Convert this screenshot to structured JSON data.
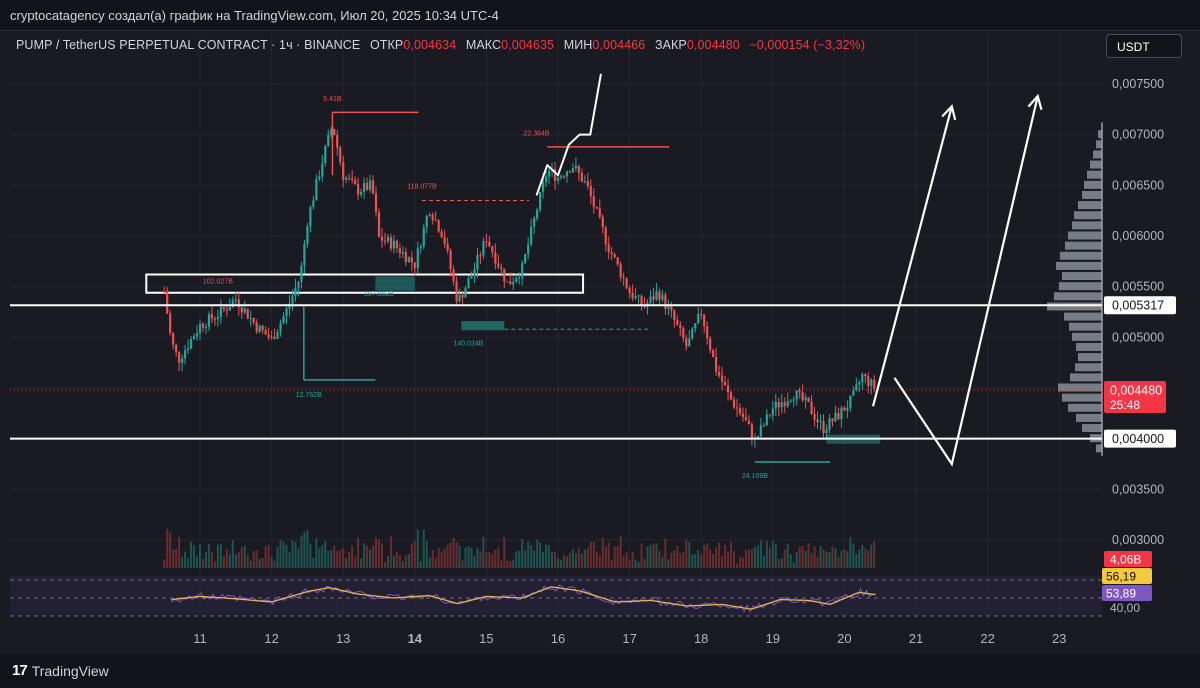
{
  "header": {
    "attribution": "cryptocatagency создал(а) график на TradingView.com, Июл 20, 2025 10:34 UTC-4"
  },
  "legend": {
    "symbol": "PUMP / TetherUS PERPETUAL CONTRACT · 1ч · BINANCE",
    "open_label": "ОТКР",
    "open": "0,004634",
    "high_label": "МАКС",
    "high": "0,004635",
    "low_label": "МИН",
    "low": "0,004466",
    "close_label": "ЗАКР",
    "close": "0,004480",
    "change": "−0,000154 (−3,32%)"
  },
  "currency_button": "USDT",
  "footer": {
    "brand": "TradingView"
  },
  "colors": {
    "background": "#1a1b22",
    "up": "#26a69a",
    "down": "#ef5350",
    "rsi_line": "#7e57c2",
    "rsi_ma": "#e8b64a",
    "level_line": "#ffffff"
  },
  "chart_data": {
    "type": "candlestick",
    "timeframe": "1h",
    "y_axis": {
      "ticks": [
        "0,007500",
        "0,007000",
        "0,006500",
        "0,006000",
        "0,005500",
        "0,005000",
        "0,004500",
        "0,004000",
        "0,003500",
        "0,003000"
      ],
      "range": [
        0.00278,
        0.0078
      ]
    },
    "x_axis": {
      "ticks": [
        "11",
        "12",
        "13",
        "14",
        "15",
        "16",
        "17",
        "18",
        "19",
        "20",
        "21",
        "22",
        "23"
      ],
      "bold_tick": "14"
    },
    "price_path": [
      {
        "day": 10.5,
        "price": 0.00545
      },
      {
        "day": 10.6,
        "price": 0.00495
      },
      {
        "day": 10.7,
        "price": 0.00478
      },
      {
        "day": 11.0,
        "price": 0.00512
      },
      {
        "day": 11.3,
        "price": 0.00525
      },
      {
        "day": 11.5,
        "price": 0.00538
      },
      {
        "day": 11.8,
        "price": 0.0051
      },
      {
        "day": 12.0,
        "price": 0.00498
      },
      {
        "day": 12.2,
        "price": 0.00525
      },
      {
        "day": 12.4,
        "price": 0.0056
      },
      {
        "day": 12.5,
        "price": 0.00615
      },
      {
        "day": 12.7,
        "price": 0.00672
      },
      {
        "day": 12.85,
        "price": 0.0071
      },
      {
        "day": 13.0,
        "price": 0.0066
      },
      {
        "day": 13.2,
        "price": 0.00645
      },
      {
        "day": 13.4,
        "price": 0.0065
      },
      {
        "day": 13.5,
        "price": 0.00598
      },
      {
        "day": 13.7,
        "price": 0.00592
      },
      {
        "day": 14.0,
        "price": 0.00572
      },
      {
        "day": 14.2,
        "price": 0.00628
      },
      {
        "day": 14.4,
        "price": 0.006
      },
      {
        "day": 14.6,
        "price": 0.00535
      },
      {
        "day": 14.8,
        "price": 0.00562
      },
      {
        "day": 15.0,
        "price": 0.00598
      },
      {
        "day": 15.3,
        "price": 0.00552
      },
      {
        "day": 15.5,
        "price": 0.00568
      },
      {
        "day": 15.7,
        "price": 0.00625
      },
      {
        "day": 15.85,
        "price": 0.00665
      },
      {
        "day": 16.0,
        "price": 0.00658
      },
      {
        "day": 16.2,
        "price": 0.0067
      },
      {
        "day": 16.4,
        "price": 0.0065
      },
      {
        "day": 16.7,
        "price": 0.0059
      },
      {
        "day": 17.0,
        "price": 0.00545
      },
      {
        "day": 17.2,
        "price": 0.0053
      },
      {
        "day": 17.4,
        "price": 0.00545
      },
      {
        "day": 17.6,
        "price": 0.0052
      },
      {
        "day": 17.8,
        "price": 0.0049
      },
      {
        "day": 18.0,
        "price": 0.00525
      },
      {
        "day": 18.2,
        "price": 0.0047
      },
      {
        "day": 18.4,
        "price": 0.0044
      },
      {
        "day": 18.6,
        "price": 0.0042
      },
      {
        "day": 18.75,
        "price": 0.00398
      },
      {
        "day": 19.0,
        "price": 0.0043
      },
      {
        "day": 19.3,
        "price": 0.00445
      },
      {
        "day": 19.5,
        "price": 0.00432
      },
      {
        "day": 19.7,
        "price": 0.0041
      },
      {
        "day": 19.9,
        "price": 0.00422
      },
      {
        "day": 20.1,
        "price": 0.00438
      },
      {
        "day": 20.25,
        "price": 0.00462
      },
      {
        "day": 20.45,
        "price": 0.00448
      }
    ],
    "levels": [
      {
        "price": 0.005317,
        "label": "0,005317"
      },
      {
        "price": 0.004,
        "label": "0,004000"
      }
    ],
    "current_price": {
      "label": "0,004480",
      "countdown": "25:48",
      "price": 0.00448
    },
    "zone_rect": {
      "day_from": 10.25,
      "day_to": 16.35,
      "price_top": 0.00562,
      "price_bottom": 0.00544
    },
    "volume_annotations": [
      {
        "text": "5.41B",
        "day": 12.85,
        "price": 0.00733
      },
      {
        "text": "102.027B",
        "day": 11.25,
        "price": 0.00553
      },
      {
        "text": "12.762B",
        "day": 12.52,
        "price": 0.00441
      },
      {
        "text": "118.077B",
        "day": 14.1,
        "price": 0.00647
      },
      {
        "text": "22.384B",
        "day": 15.7,
        "price": 0.00699
      },
      {
        "text": "140.024B",
        "day": 14.75,
        "price": 0.00492
      },
      {
        "text": "24.109B",
        "day": 18.75,
        "price": 0.00361
      },
      {
        "text": "107.662B",
        "day": 13.5,
        "price": 0.00541
      }
    ],
    "volume_label": "4,06B",
    "rsi": {
      "value_ma": "56,19",
      "value": "53,89",
      "level_label": "40,00",
      "path": [
        {
          "day": 10.6,
          "rsi": 48
        },
        {
          "day": 11.0,
          "rsi": 52
        },
        {
          "day": 11.5,
          "rsi": 49
        },
        {
          "day": 12.0,
          "rsi": 45
        },
        {
          "day": 12.5,
          "rsi": 58
        },
        {
          "day": 12.8,
          "rsi": 63
        },
        {
          "day": 13.2,
          "rsi": 55
        },
        {
          "day": 13.7,
          "rsi": 50
        },
        {
          "day": 14.2,
          "rsi": 53
        },
        {
          "day": 14.6,
          "rsi": 43
        },
        {
          "day": 15.0,
          "rsi": 52
        },
        {
          "day": 15.5,
          "rsi": 50
        },
        {
          "day": 15.9,
          "rsi": 64
        },
        {
          "day": 16.3,
          "rsi": 59
        },
        {
          "day": 16.8,
          "rsi": 45
        },
        {
          "day": 17.3,
          "rsi": 47
        },
        {
          "day": 17.8,
          "rsi": 40
        },
        {
          "day": 18.3,
          "rsi": 42
        },
        {
          "day": 18.7,
          "rsi": 36
        },
        {
          "day": 19.1,
          "rsi": 48
        },
        {
          "day": 19.5,
          "rsi": 47
        },
        {
          "day": 19.8,
          "rsi": 42
        },
        {
          "day": 20.2,
          "rsi": 57
        },
        {
          "day": 20.45,
          "rsi": 54
        }
      ]
    },
    "volume_profile": [
      {
        "price": 0.007,
        "size": 4
      },
      {
        "price": 0.0069,
        "size": 6
      },
      {
        "price": 0.0068,
        "size": 9
      },
      {
        "price": 0.0067,
        "size": 12
      },
      {
        "price": 0.0066,
        "size": 15
      },
      {
        "price": 0.0065,
        "size": 18
      },
      {
        "price": 0.0064,
        "size": 20
      },
      {
        "price": 0.0063,
        "size": 24
      },
      {
        "price": 0.0062,
        "size": 28
      },
      {
        "price": 0.0061,
        "size": 30
      },
      {
        "price": 0.006,
        "size": 34
      },
      {
        "price": 0.0059,
        "size": 37
      },
      {
        "price": 0.0058,
        "size": 42
      },
      {
        "price": 0.0057,
        "size": 46
      },
      {
        "price": 0.0056,
        "size": 40
      },
      {
        "price": 0.0055,
        "size": 43
      },
      {
        "price": 0.0054,
        "size": 48
      },
      {
        "price": 0.0053,
        "size": 55
      },
      {
        "price": 0.0052,
        "size": 38
      },
      {
        "price": 0.0051,
        "size": 33
      },
      {
        "price": 0.005,
        "size": 30
      },
      {
        "price": 0.0049,
        "size": 26
      },
      {
        "price": 0.0048,
        "size": 24
      },
      {
        "price": 0.0047,
        "size": 27
      },
      {
        "price": 0.0046,
        "size": 32
      },
      {
        "price": 0.0045,
        "size": 44
      },
      {
        "price": 0.0044,
        "size": 40
      },
      {
        "price": 0.0043,
        "size": 34
      },
      {
        "price": 0.0042,
        "size": 26
      },
      {
        "price": 0.0041,
        "size": 20
      },
      {
        "price": 0.004,
        "size": 12
      },
      {
        "price": 0.0039,
        "size": 6
      }
    ],
    "drawings": {
      "squiggle": [
        {
          "day": 15.7,
          "price": 0.0064
        },
        {
          "day": 15.85,
          "price": 0.0067
        },
        {
          "day": 16.0,
          "price": 0.0066
        },
        {
          "day": 16.15,
          "price": 0.0069
        },
        {
          "day": 16.3,
          "price": 0.007
        },
        {
          "day": 16.45,
          "price": 0.007
        },
        {
          "day": 16.6,
          "price": 0.0076
        }
      ],
      "projection_1": [
        {
          "day": 20.4,
          "price": 0.00432
        },
        {
          "day": 21.5,
          "price": 0.00728
        }
      ],
      "projection_2_path": [
        {
          "day": 20.7,
          "price": 0.0046
        },
        {
          "day": 21.5,
          "price": 0.00375
        },
        {
          "day": 22.7,
          "price": 0.00738
        }
      ]
    }
  }
}
